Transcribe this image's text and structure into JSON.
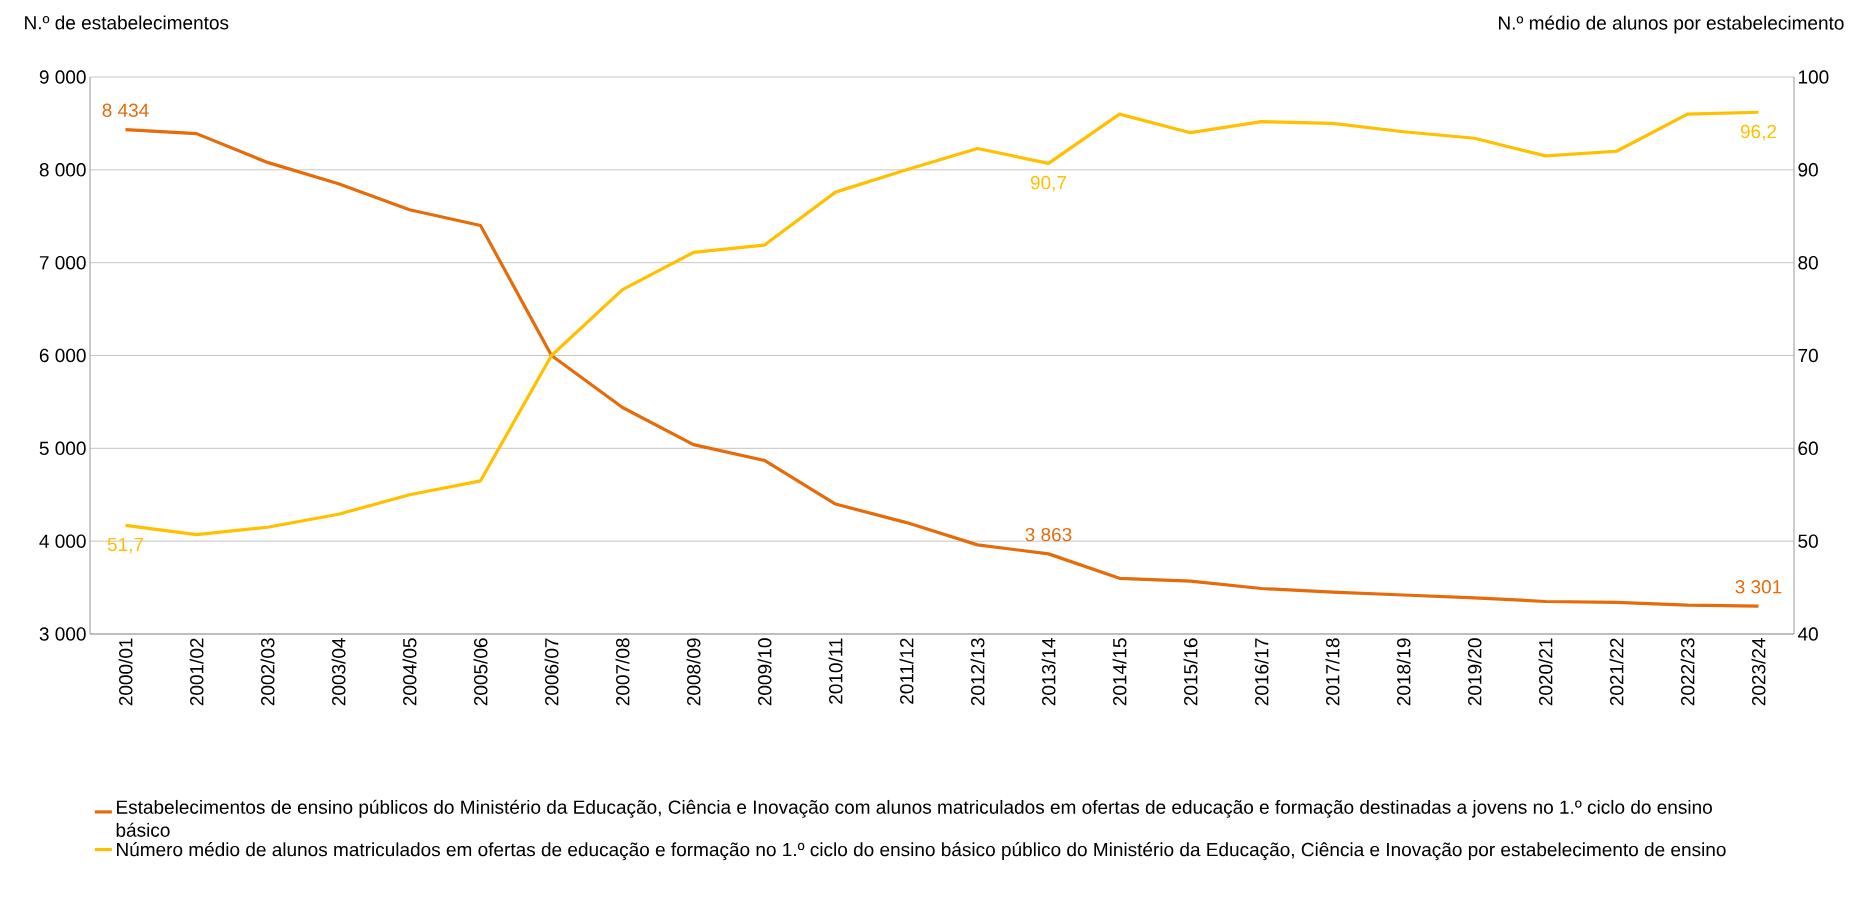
{
  "chart_data": {
    "type": "line",
    "ylabel": "N.º de estabelecimentos",
    "y2label": "N.º médio de alunos por estabelecimento",
    "categories": [
      "2000/01",
      "2001/02",
      "2002/03",
      "2003/04",
      "2004/05",
      "2005/06",
      "2006/07",
      "2007/08",
      "2008/09",
      "2009/10",
      "2010/11",
      "2011/12",
      "2012/13",
      "2013/14",
      "2014/15",
      "2015/16",
      "2016/17",
      "2017/18",
      "2018/19",
      "2019/20",
      "2020/21",
      "2021/22",
      "2022/23",
      "2023/24"
    ],
    "series": [
      {
        "name": "Estabelecimentos de ensino públicos do Ministério da Educação, Ciência e Inovação com alunos matriculados em ofertas de educação e formação destinadas a jovens no 1.º ciclo do ensino básico",
        "color": "#e46c0a",
        "values": [
          8434,
          8390,
          8080,
          7850,
          7570,
          7400,
          6000,
          5440,
          5040,
          4870,
          4400,
          4200,
          3960,
          3863,
          3600,
          3570,
          3490,
          3450,
          3420,
          3390,
          3350,
          3340,
          3310,
          3301
        ],
        "value_labels": [
          "8 434",
          null,
          null,
          null,
          null,
          null,
          null,
          null,
          null,
          null,
          null,
          null,
          null,
          "3 863",
          null,
          null,
          null,
          null,
          null,
          null,
          null,
          null,
          null,
          "3 301"
        ]
      },
      {
        "name": "Número médio de alunos matriculados em ofertas de educação e formação no 1.º ciclo do ensino básico público do Ministério da Educação, Ciência e Inovação por estabelecimento de ensino",
        "color": "#ffc000",
        "axis": "y2",
        "values": [
          51.7,
          50.7,
          51.5,
          52.9,
          55.0,
          56.5,
          70.0,
          77.1,
          81.1,
          81.9,
          87.6,
          90.0,
          92.3,
          90.7,
          96.0,
          94.0,
          95.2,
          95.0,
          94.1,
          93.4,
          91.5,
          92.0,
          96.0,
          96.2
        ],
        "value_labels": [
          "51,7",
          null,
          null,
          null,
          null,
          null,
          null,
          null,
          null,
          null,
          null,
          null,
          null,
          "90,7",
          null,
          null,
          null,
          null,
          null,
          null,
          null,
          null,
          null,
          "96,2"
        ]
      }
    ],
    "ylim": [
      3000,
      9000
    ],
    "yticks": [
      {
        "value": 3000,
        "label": "3 000"
      },
      {
        "value": 4000,
        "label": "4 000"
      },
      {
        "value": 5000,
        "label": "5 000"
      },
      {
        "value": 6000,
        "label": "6 000"
      },
      {
        "value": 7000,
        "label": "7 000"
      },
      {
        "value": 8000,
        "label": "8 000"
      },
      {
        "value": 9000,
        "label": "9 000"
      }
    ],
    "y2lim": [
      40,
      100
    ],
    "y2ticks": [
      40,
      50,
      60,
      70,
      80,
      90,
      100
    ],
    "grid": "y",
    "legend": "bottom"
  }
}
